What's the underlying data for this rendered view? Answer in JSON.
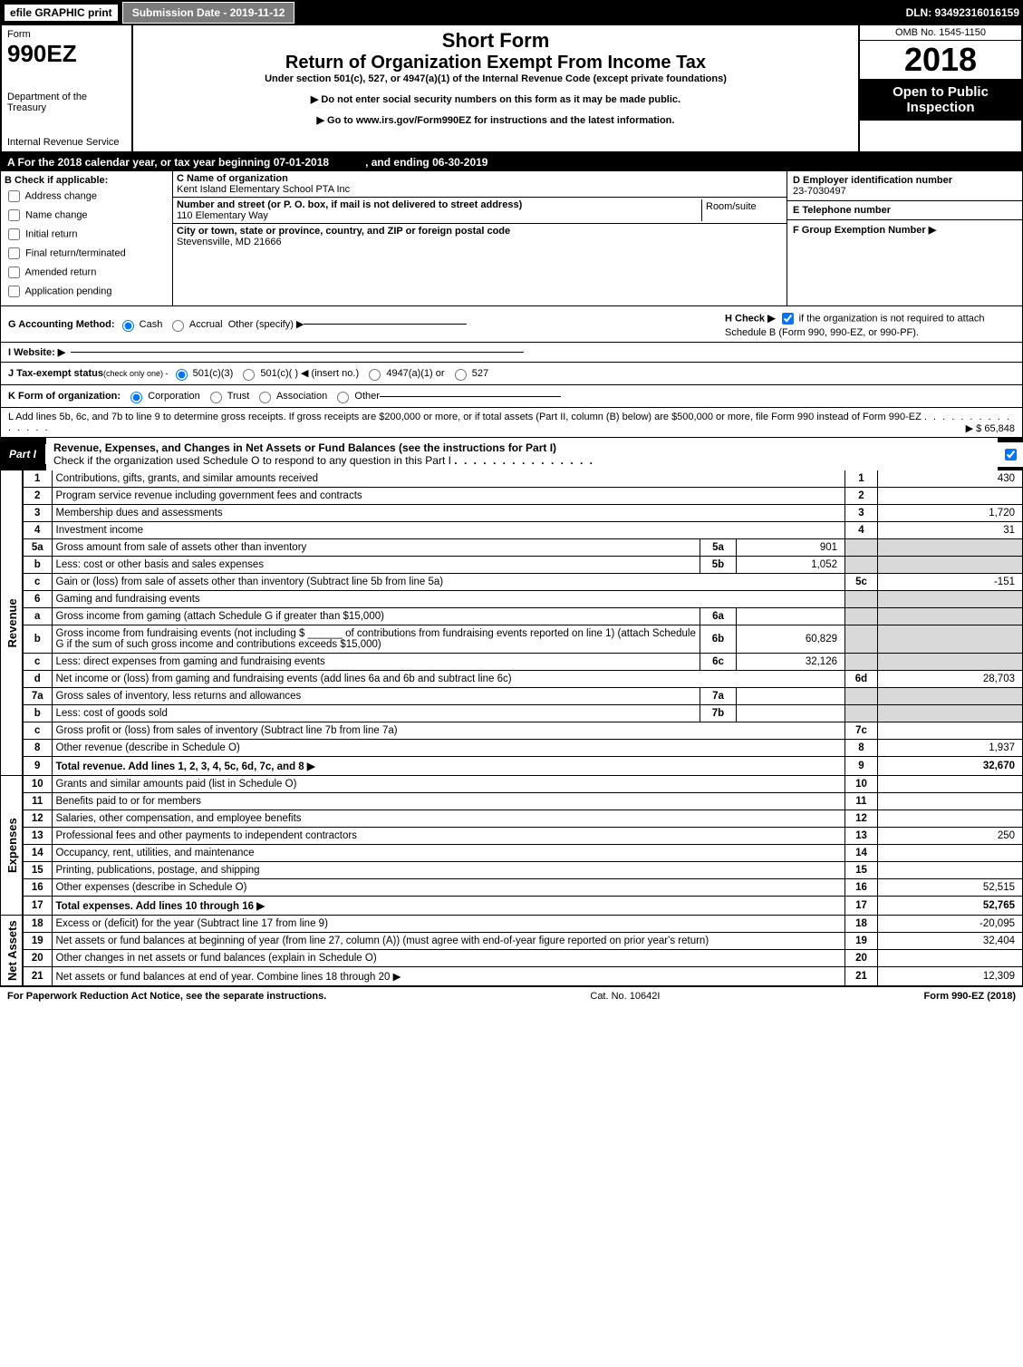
{
  "topbar": {
    "efile": "efile GRAPHIC print",
    "submission": "Submission Date - 2019-11-12",
    "dln": "DLN: 93492316016159"
  },
  "header": {
    "form_label": "Form",
    "form_number": "990EZ",
    "dept1": "Department of the Treasury",
    "dept2": "Internal Revenue Service",
    "short_form": "Short Form",
    "return_title": "Return of Organization Exempt From Income Tax",
    "subtitle": "Under section 501(c), 527, or 4947(a)(1) of the Internal Revenue Code (except private foundations)",
    "note1": "▶ Do not enter social security numbers on this form as it may be made public.",
    "note2": "▶ Go to www.irs.gov/Form990EZ for instructions and the latest information.",
    "omb": "OMB No. 1545-1150",
    "year": "2018",
    "open": "Open to Public Inspection"
  },
  "period": {
    "label": "A For the 2018 calendar year, or tax year beginning",
    "begin": "07-01-2018",
    "mid": ", and ending",
    "end": "06-30-2019"
  },
  "sectionB": {
    "label": "B Check if applicable:",
    "addr_change": "Address change",
    "name_change": "Name change",
    "initial_return": "Initial return",
    "final_return": "Final return/terminated",
    "amended": "Amended return",
    "app_pending": "Application pending"
  },
  "sectionC": {
    "name_label": "C Name of organization",
    "name": "Kent Island Elementary School PTA Inc",
    "addr_label": "Number and street (or P. O. box, if mail is not delivered to street address)",
    "addr": "110 Elementary Way",
    "room_label": "Room/suite",
    "city_label": "City or town, state or province, country, and ZIP or foreign postal code",
    "city": "Stevensville, MD  21666"
  },
  "sectionD": {
    "ein_label": "D Employer identification number",
    "ein": "23-7030497",
    "phone_label": "E Telephone number",
    "group_label": "F Group Exemption Number  ▶"
  },
  "sectionG": {
    "label": "G Accounting Method:",
    "cash": "Cash",
    "accrual": "Accrual",
    "other": "Other (specify) ▶"
  },
  "sectionH": {
    "label": "H Check ▶",
    "text": "if the organization is not required to attach Schedule B (Form 990, 990-EZ, or 990-PF)."
  },
  "sectionI": {
    "label": "I Website: ▶"
  },
  "sectionJ": {
    "label": "J Tax-exempt status",
    "hint": "(check only one) -",
    "o1": "501(c)(3)",
    "o2": "501(c)( ) ◀ (insert no.)",
    "o3": "4947(a)(1) or",
    "o4": "527"
  },
  "sectionK": {
    "label": "K Form of organization:",
    "corp": "Corporation",
    "trust": "Trust",
    "assoc": "Association",
    "other": "Other"
  },
  "sectionL": {
    "text": "L Add lines 5b, 6c, and 7b to line 9 to determine gross receipts. If gross receipts are $200,000 or more, or if total assets (Part II, column (B) below) are $500,000 or more, file Form 990 instead of Form 990-EZ",
    "amount": "▶ $ 65,848"
  },
  "part1": {
    "label": "Part I",
    "title": "Revenue, Expenses, and Changes in Net Assets or Fund Balances (see the instructions for Part I)",
    "check_note": "Check if the organization used Schedule O to respond to any question in this Part I"
  },
  "side": {
    "revenue": "Revenue",
    "expenses": "Expenses",
    "netassets": "Net Assets"
  },
  "lines": [
    {
      "n": "1",
      "desc": "Contributions, gifts, grants, and similar amounts received",
      "ln": "1",
      "amt": "430"
    },
    {
      "n": "2",
      "desc": "Program service revenue including government fees and contracts",
      "ln": "2",
      "amt": ""
    },
    {
      "n": "3",
      "desc": "Membership dues and assessments",
      "ln": "3",
      "amt": "1,720"
    },
    {
      "n": "4",
      "desc": "Investment income",
      "ln": "4",
      "amt": "31"
    },
    {
      "n": "5a",
      "desc": "Gross amount from sale of assets other than inventory",
      "sub": "5a",
      "subval": "901",
      "shade": true
    },
    {
      "n": "b",
      "desc": "Less: cost or other basis and sales expenses",
      "sub": "5b",
      "subval": "1,052",
      "shade": true
    },
    {
      "n": "c",
      "desc": "Gain or (loss) from sale of assets other than inventory (Subtract line 5b from line 5a)",
      "ln": "5c",
      "amt": "-151"
    },
    {
      "n": "6",
      "desc": "Gaming and fundraising events",
      "shade": true
    },
    {
      "n": "a",
      "desc": "Gross income from gaming (attach Schedule G if greater than $15,000)",
      "sub": "6a",
      "subval": "",
      "shade": true
    },
    {
      "n": "b",
      "desc": "Gross income from fundraising events (not including $ ______ of contributions from fundraising events reported on line 1) (attach Schedule G if the sum of such gross income and contributions exceeds $15,000)",
      "sub": "6b",
      "subval": "60,829",
      "shade": true
    },
    {
      "n": "c",
      "desc": "Less: direct expenses from gaming and fundraising events",
      "sub": "6c",
      "subval": "32,126",
      "shade": true
    },
    {
      "n": "d",
      "desc": "Net income or (loss) from gaming and fundraising events (add lines 6a and 6b and subtract line 6c)",
      "ln": "6d",
      "amt": "28,703"
    },
    {
      "n": "7a",
      "desc": "Gross sales of inventory, less returns and allowances",
      "sub": "7a",
      "subval": "",
      "shade": true
    },
    {
      "n": "b",
      "desc": "Less: cost of goods sold",
      "sub": "7b",
      "subval": "",
      "shade": true
    },
    {
      "n": "c",
      "desc": "Gross profit or (loss) from sales of inventory (Subtract line 7b from line 7a)",
      "ln": "7c",
      "amt": ""
    },
    {
      "n": "8",
      "desc": "Other revenue (describe in Schedule O)",
      "ln": "8",
      "amt": "1,937"
    },
    {
      "n": "9",
      "desc": "Total revenue. Add lines 1, 2, 3, 4, 5c, 6d, 7c, and 8",
      "ln": "9",
      "amt": "32,670",
      "bold": true,
      "arrow": true
    }
  ],
  "exp_lines": [
    {
      "n": "10",
      "desc": "Grants and similar amounts paid (list in Schedule O)",
      "ln": "10",
      "amt": ""
    },
    {
      "n": "11",
      "desc": "Benefits paid to or for members",
      "ln": "11",
      "amt": ""
    },
    {
      "n": "12",
      "desc": "Salaries, other compensation, and employee benefits",
      "ln": "12",
      "amt": ""
    },
    {
      "n": "13",
      "desc": "Professional fees and other payments to independent contractors",
      "ln": "13",
      "amt": "250"
    },
    {
      "n": "14",
      "desc": "Occupancy, rent, utilities, and maintenance",
      "ln": "14",
      "amt": ""
    },
    {
      "n": "15",
      "desc": "Printing, publications, postage, and shipping",
      "ln": "15",
      "amt": ""
    },
    {
      "n": "16",
      "desc": "Other expenses (describe in Schedule O)",
      "ln": "16",
      "amt": "52,515"
    },
    {
      "n": "17",
      "desc": "Total expenses. Add lines 10 through 16",
      "ln": "17",
      "amt": "52,765",
      "bold": true,
      "arrow": true
    }
  ],
  "na_lines": [
    {
      "n": "18",
      "desc": "Excess or (deficit) for the year (Subtract line 17 from line 9)",
      "ln": "18",
      "amt": "-20,095"
    },
    {
      "n": "19",
      "desc": "Net assets or fund balances at beginning of year (from line 27, column (A)) (must agree with end-of-year figure reported on prior year's return)",
      "ln": "19",
      "amt": "32,404"
    },
    {
      "n": "20",
      "desc": "Other changes in net assets or fund balances (explain in Schedule O)",
      "ln": "20",
      "amt": ""
    },
    {
      "n": "21",
      "desc": "Net assets or fund balances at end of year. Combine lines 18 through 20",
      "ln": "21",
      "amt": "12,309",
      "arrow": true
    }
  ],
  "footer": {
    "paperwork": "For Paperwork Reduction Act Notice, see the separate instructions.",
    "cat": "Cat. No. 10642I",
    "form": "Form 990-EZ (2018)"
  }
}
